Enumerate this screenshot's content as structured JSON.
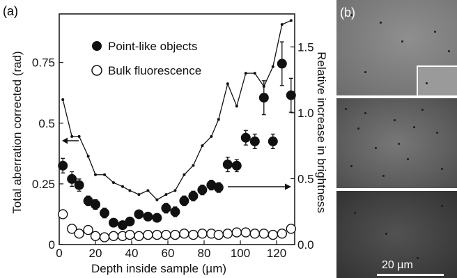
{
  "panel_a": {
    "label": "(a)"
  },
  "panel_b": {
    "label": "(b)",
    "scalebar_label": "20 µm"
  },
  "chart_data": {
    "type": "scatter",
    "xlabel": "Depth inside sample (µm)",
    "ylabel_left": "Total aberration corrected (rad)",
    "ylabel_right": "Relative increase in brightness",
    "xlim": [
      0,
      130
    ],
    "ylim_left": [
      0,
      0.95
    ],
    "ylim_right": [
      0,
      1.75
    ],
    "x_ticks": [
      "0",
      "20",
      "40",
      "60",
      "80",
      "100",
      "120"
    ],
    "y_ticks_left": [
      "0",
      "0.25",
      "0.5",
      "0.75"
    ],
    "y_ticks_right": [
      "0.0",
      "0.5",
      "1.0",
      "1.5"
    ],
    "legend": {
      "position": "top-center",
      "entries": [
        "Point-like objects",
        "Bulk fluorescence"
      ]
    },
    "series": [
      {
        "name": "Point-like objects",
        "axis": "left",
        "marker": "filled-circle",
        "x": [
          2,
          7,
          11,
          16,
          20,
          25,
          30,
          35,
          39,
          44,
          49,
          54,
          59,
          64,
          69,
          74,
          79,
          84,
          88,
          93,
          98,
          103,
          108,
          113,
          118,
          123,
          128
        ],
        "y": [
          0.325,
          0.27,
          0.245,
          0.18,
          0.165,
          0.13,
          0.09,
          0.08,
          0.095,
          0.125,
          0.115,
          0.11,
          0.15,
          0.135,
          0.18,
          0.2,
          0.225,
          0.245,
          0.235,
          0.33,
          0.325,
          0.44,
          0.425,
          0.605,
          0.425,
          0.745,
          0.615
        ],
        "err": [
          0.03,
          0.03,
          0.025,
          0.02,
          0.02,
          0.02,
          0.015,
          0.015,
          0.015,
          0.015,
          0.015,
          0.015,
          0.02,
          0.02,
          0.02,
          0.02,
          0.02,
          0.02,
          0.02,
          0.03,
          0.025,
          0.03,
          0.03,
          0.07,
          0.03,
          0.09,
          0.07
        ]
      },
      {
        "name": "Bulk fluorescence",
        "axis": "left",
        "marker": "open-circle",
        "x": [
          2,
          7,
          11,
          16,
          20,
          25,
          30,
          35,
          39,
          44,
          49,
          54,
          59,
          64,
          69,
          74,
          79,
          84,
          88,
          93,
          98,
          103,
          108,
          113,
          118,
          123,
          128
        ],
        "y": [
          0.125,
          0.065,
          0.045,
          0.06,
          0.035,
          0.03,
          0.035,
          0.035,
          0.04,
          0.035,
          0.04,
          0.04,
          0.04,
          0.04,
          0.045,
          0.04,
          0.045,
          0.045,
          0.04,
          0.045,
          0.05,
          0.05,
          0.045,
          0.045,
          0.04,
          0.045,
          0.065
        ]
      },
      {
        "axis": "right",
        "marker": "line-dots",
        "x": [
          2,
          7,
          11,
          16,
          20,
          25,
          30,
          35,
          39,
          44,
          49,
          54,
          59,
          64,
          69,
          74,
          79,
          84,
          88,
          93,
          98,
          103,
          108,
          113,
          118,
          123,
          128
        ],
        "y": [
          1.1,
          0.82,
          0.82,
          0.67,
          0.53,
          0.53,
          0.47,
          0.44,
          0.41,
          0.38,
          0.41,
          0.34,
          0.38,
          0.41,
          0.53,
          0.6,
          0.75,
          0.82,
          0.95,
          1.22,
          1.05,
          1.3,
          1.3,
          1.2,
          1.35,
          1.67,
          1.7
        ]
      }
    ],
    "annotations": [
      {
        "type": "arrow",
        "direction": "left",
        "points_to": "left axis"
      },
      {
        "type": "arrow",
        "direction": "right",
        "points_to": "right axis"
      }
    ]
  }
}
